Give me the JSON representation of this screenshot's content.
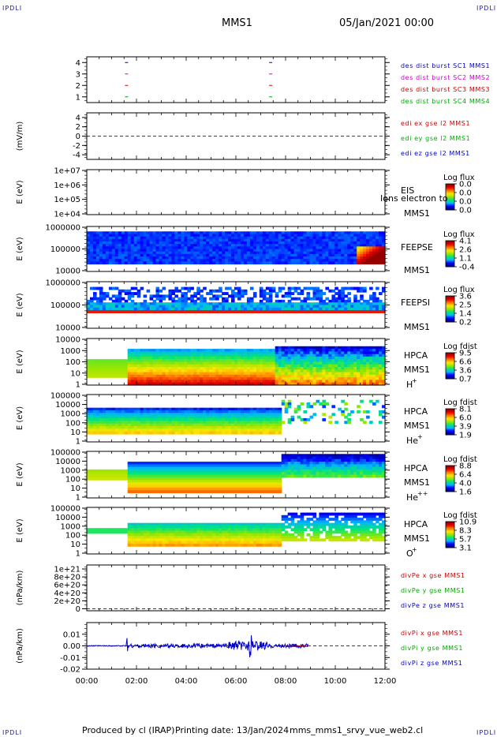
{
  "header": {
    "spacecraft": "MMS1",
    "datetime": "05/Jan/2021 00:00",
    "corner_label": "IPDLI"
  },
  "footer": {
    "produced_by": "Produced by cl (IRAP)",
    "printing_date": "Printing date: 13/Jan/2024",
    "filename": "mms_mms1_srvy_vue_web2.cl"
  },
  "colors": {
    "blue": "#0000cc",
    "magenta": "#cc00cc",
    "red": "#cc0000",
    "green": "#00aa00"
  },
  "chart_data": [
    {
      "type": "line",
      "panel": "burst",
      "ylim": [
        0.5,
        4.5
      ],
      "yticks": [
        "4",
        "3",
        "2",
        "1"
      ],
      "legend": [
        {
          "label": "des dist burst SC1 MMS1",
          "color": "#0000cc"
        },
        {
          "label": "des dist burst SC2 MMS2",
          "color": "#cc00cc"
        },
        {
          "label": "des dist burst SC3 MMS3",
          "color": "#cc0000"
        },
        {
          "label": "des dist burst SC4 MMS4",
          "color": "#00aa00"
        }
      ],
      "bursts_hours": [
        1.6,
        7.4
      ]
    },
    {
      "type": "line",
      "panel": "edi",
      "ylabel": "(mV/m)",
      "ylim": [
        -5,
        5
      ],
      "yticks": [
        "4",
        "2",
        "0",
        "-2",
        "-4"
      ],
      "legend": [
        {
          "label": "edi ex gse l2 MMS1",
          "color": "#cc0000"
        },
        {
          "label": "edi ey gse l2 MMS1",
          "color": "#00aa00"
        },
        {
          "label": "edi ez gse l2 MMS1",
          "color": "#0000cc"
        }
      ]
    },
    {
      "type": "heatmap",
      "panel": "eis",
      "ylabel": "E (eV)",
      "yticks": [
        "1e+07",
        "1e+06",
        "1e+05",
        "1e+04"
      ],
      "instrument": "EIS",
      "sc": "MMS1",
      "overlay": "Ions electron to",
      "colorbar_title": "Log flux",
      "colorbar_ticks": [
        "0.0",
        "0.0",
        "0.0",
        "0.0"
      ]
    },
    {
      "type": "heatmap",
      "panel": "feepse",
      "ylabel": "E (eV)",
      "yticks": [
        "1000000",
        "100000",
        "10000"
      ],
      "instrument": "FEEPSE",
      "sc": "MMS1",
      "colorbar_title": "Log flux",
      "colorbar_ticks": [
        "4.1",
        "2.6",
        "1.1",
        "-0.4"
      ]
    },
    {
      "type": "heatmap",
      "panel": "feepsi",
      "ylabel": "E (eV)",
      "yticks": [
        "1000000",
        "100000",
        "10000"
      ],
      "instrument": "FEEPSI",
      "sc": "MMS1",
      "colorbar_title": "Log flux",
      "colorbar_ticks": [
        "3.6",
        "2.5",
        "1.4",
        "0.2"
      ]
    },
    {
      "type": "heatmap",
      "panel": "hpca_h",
      "ylabel": "E (eV)",
      "yticks": [
        "10000",
        "1000",
        "100",
        "10",
        "1"
      ],
      "instrument": "HPCA",
      "sc": "MMS1",
      "species": "H",
      "species_sup": "+",
      "colorbar_title": "Log fdist",
      "colorbar_ticks": [
        "9.5",
        "6.6",
        "3.6",
        "0.7"
      ]
    },
    {
      "type": "heatmap",
      "panel": "hpca_he",
      "ylabel": "E (eV)",
      "yticks": [
        "100000",
        "10000",
        "1000",
        "100",
        "10",
        "1"
      ],
      "instrument": "HPCA",
      "sc": "MMS1",
      "species": "He",
      "species_sup": "+",
      "colorbar_title": "Log fdist",
      "colorbar_ticks": [
        "8.1",
        "6.0",
        "3.9",
        "1.9"
      ]
    },
    {
      "type": "heatmap",
      "panel": "hpca_hepp",
      "ylabel": "E (eV)",
      "yticks": [
        "100000",
        "10000",
        "1000",
        "100",
        "10",
        "1"
      ],
      "instrument": "HPCA",
      "sc": "MMS1",
      "species": "He",
      "species_sup": "++",
      "colorbar_title": "Log fdist",
      "colorbar_ticks": [
        "8.8",
        "6.4",
        "4.0",
        "1.6"
      ]
    },
    {
      "type": "heatmap",
      "panel": "hpca_o",
      "ylabel": "E (eV)",
      "yticks": [
        "100000",
        "10000",
        "1000",
        "100",
        "10",
        "1"
      ],
      "instrument": "HPCA",
      "sc": "MMS1",
      "species": "O",
      "species_sup": "+",
      "colorbar_title": "Log fdist",
      "colorbar_ticks": [
        "10.9",
        "8.3",
        "5.7",
        "3.1"
      ]
    },
    {
      "type": "line",
      "panel": "divpe",
      "ylabel": "(nPa/km)",
      "ylim": [
        -5e+19,
        1.1e+21
      ],
      "yticks": [
        "1e+21",
        "8e+20",
        "6e+20",
        "4e+20",
        "2e+20",
        "0"
      ],
      "legend": [
        {
          "label": "divPe x gse MMS1",
          "color": "#cc0000"
        },
        {
          "label": "divPe y gse MMS1",
          "color": "#00aa00"
        },
        {
          "label": "divPe z gse MMS1",
          "color": "#0000cc"
        }
      ]
    },
    {
      "type": "line",
      "panel": "divpi",
      "ylabel": "(nPa/km)",
      "ylim": [
        -0.02,
        0.02
      ],
      "yticks": [
        "0.01",
        "0.00",
        "-0.01",
        "-0.02"
      ],
      "legend": [
        {
          "label": "divPi x gse MMS1",
          "color": "#cc0000"
        },
        {
          "label": "divPi y gse MMS1",
          "color": "#00aa00"
        },
        {
          "label": "divPi z gse MMS1",
          "color": "#0000cc"
        }
      ],
      "data_end_hours": 8.9
    }
  ],
  "x_axis": {
    "xlim_hours": [
      0,
      12
    ],
    "ticks": [
      "00:00",
      "02:00",
      "04:00",
      "06:00",
      "08:00",
      "10:00",
      "12:00"
    ]
  }
}
